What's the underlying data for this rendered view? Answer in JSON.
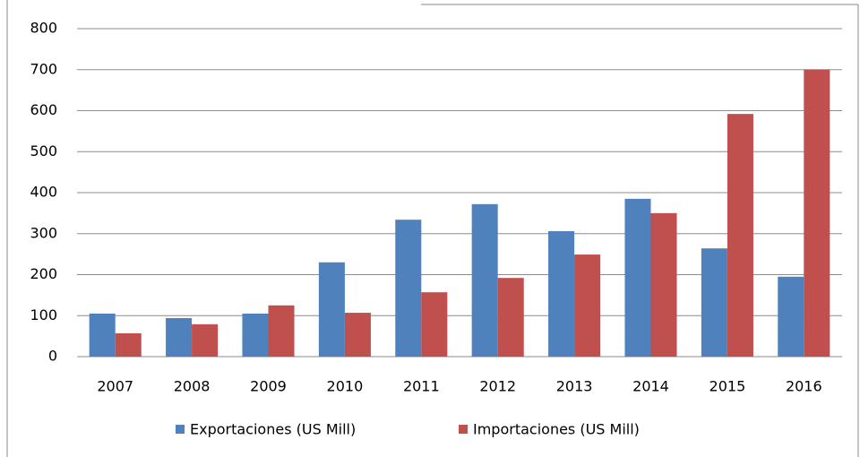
{
  "chart_data": {
    "type": "bar",
    "categories": [
      "2007",
      "2008",
      "2009",
      "2010",
      "2011",
      "2012",
      "2013",
      "2014",
      "2015",
      "2016"
    ],
    "series": [
      {
        "name": "Exportaciones (US Mill)",
        "color": "#4f81bd",
        "values": [
          105,
          94,
          105,
          230,
          334,
          372,
          306,
          385,
          264,
          195
        ]
      },
      {
        "name": "Importaciones (US Mill)",
        "color": "#c0504d",
        "values": [
          57,
          79,
          125,
          107,
          157,
          192,
          249,
          350,
          592,
          700
        ]
      }
    ],
    "ylim": [
      0,
      800
    ],
    "yticks": [
      0,
      100,
      200,
      300,
      400,
      500,
      600,
      700,
      800
    ],
    "grid": true,
    "legend": "bottom"
  }
}
